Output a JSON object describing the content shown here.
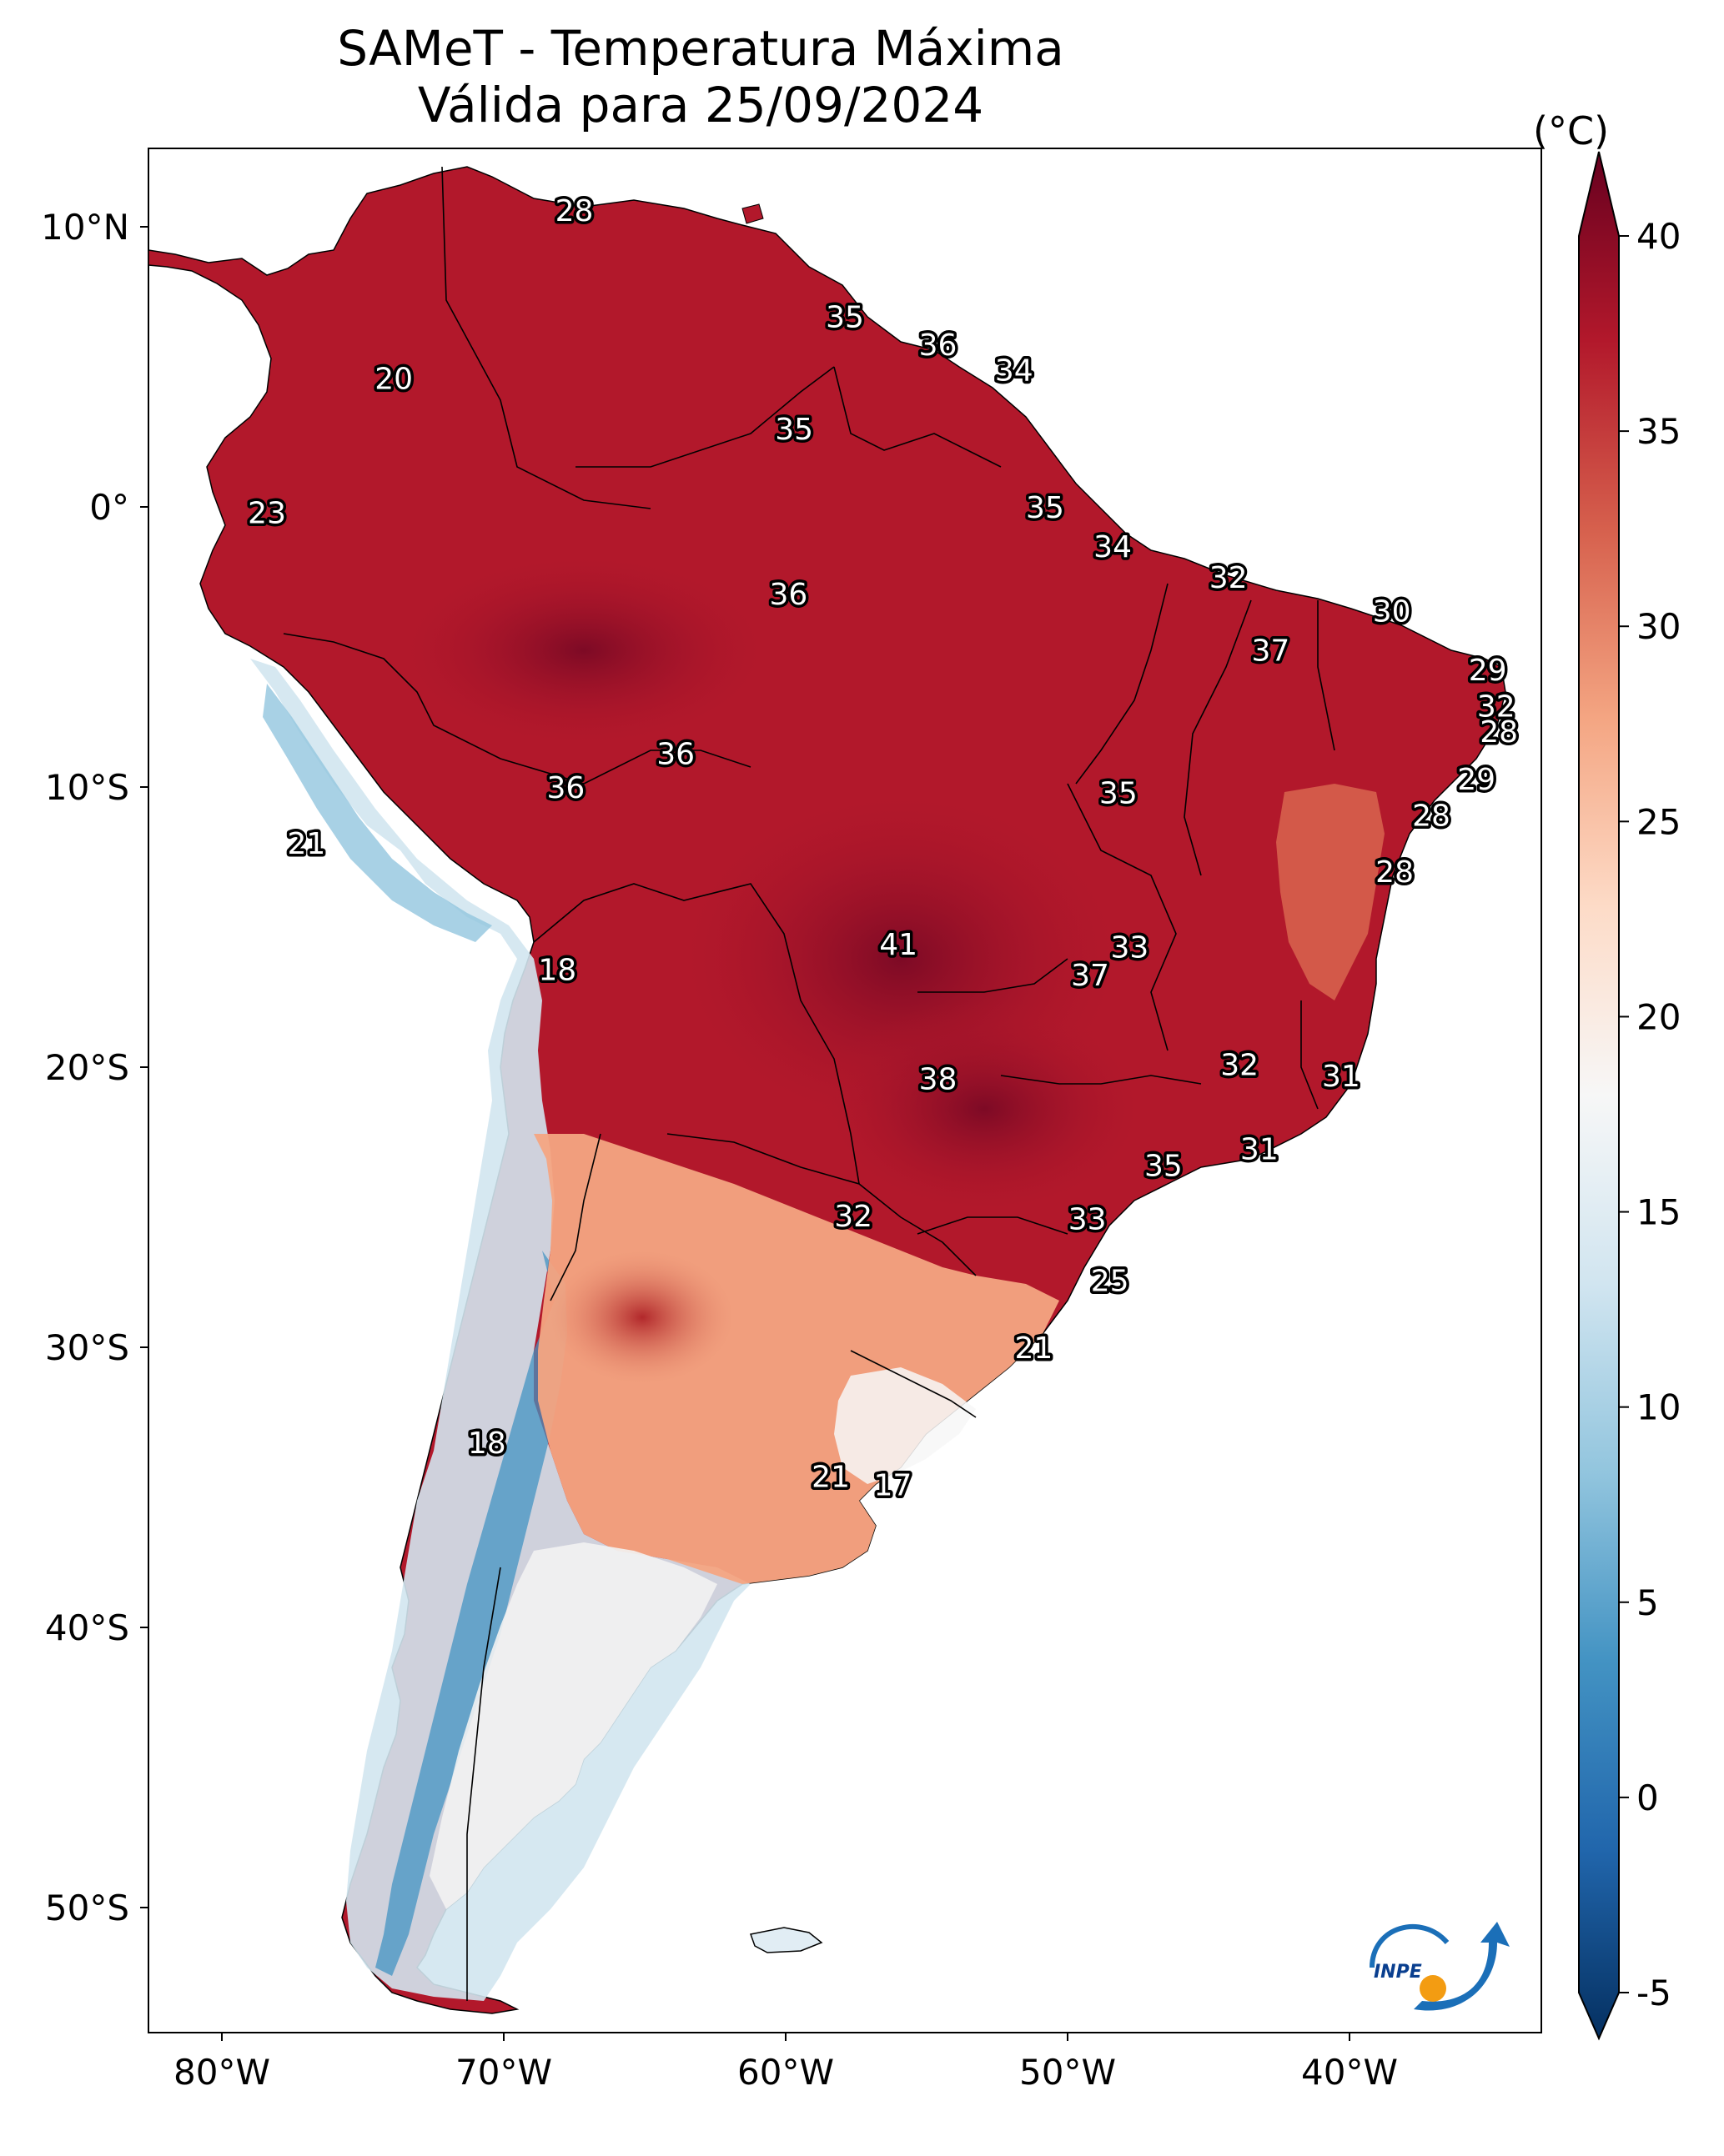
{
  "title": {
    "line1": "SAMeT - Temperatura Máxima",
    "line2": "Válida para 25/09/2024"
  },
  "axes": {
    "lon_labels": [
      "80°W",
      "70°W",
      "60°W",
      "50°W",
      "40°W"
    ],
    "lat_labels": [
      "10°N",
      "0°",
      "10°S",
      "20°S",
      "30°S",
      "40°S",
      "50°S"
    ]
  },
  "colorbar": {
    "unit": "(°C)",
    "ticks": [
      "40",
      "35",
      "30",
      "25",
      "20",
      "15",
      "10",
      "5",
      "0",
      "-5"
    ],
    "colors": [
      "#053061",
      "#2166ac",
      "#4393c3",
      "#92c5de",
      "#d1e5f0",
      "#f7f7f7",
      "#fddbc7",
      "#f4a582",
      "#d6604d",
      "#b2182b",
      "#67001f"
    ]
  },
  "stations": [
    {
      "value": "28",
      "lon": -67.5,
      "lat": 10.6
    },
    {
      "value": "20",
      "lon": -73.9,
      "lat": 4.6
    },
    {
      "value": "35",
      "lon": -57.9,
      "lat": 6.8
    },
    {
      "value": "36",
      "lon": -54.6,
      "lat": 5.8
    },
    {
      "value": "34",
      "lon": -51.9,
      "lat": 4.9
    },
    {
      "value": "35",
      "lon": -59.7,
      "lat": 2.8
    },
    {
      "value": "23",
      "lon": -78.4,
      "lat": -0.2
    },
    {
      "value": "35",
      "lon": -50.8,
      "lat": 0.0
    },
    {
      "value": "34",
      "lon": -48.4,
      "lat": -1.4
    },
    {
      "value": "32",
      "lon": -44.3,
      "lat": -2.5
    },
    {
      "value": "30",
      "lon": -38.5,
      "lat": -3.7
    },
    {
      "value": "36",
      "lon": -59.9,
      "lat": -3.1
    },
    {
      "value": "37",
      "lon": -42.8,
      "lat": -5.1
    },
    {
      "value": "29",
      "lon": -35.1,
      "lat": -5.8
    },
    {
      "value": "32",
      "lon": -34.8,
      "lat": -7.1
    },
    {
      "value": "28",
      "lon": -34.7,
      "lat": -8.0
    },
    {
      "value": "36",
      "lon": -63.9,
      "lat": -8.8
    },
    {
      "value": "36",
      "lon": -67.8,
      "lat": -10.0
    },
    {
      "value": "35",
      "lon": -48.2,
      "lat": -10.2
    },
    {
      "value": "29",
      "lon": -35.5,
      "lat": -9.7
    },
    {
      "value": "28",
      "lon": -37.1,
      "lat": -11.0
    },
    {
      "value": "21",
      "lon": -77.0,
      "lat": -12.0
    },
    {
      "value": "28",
      "lon": -38.4,
      "lat": -13.0
    },
    {
      "value": "41",
      "lon": -56.0,
      "lat": -15.6
    },
    {
      "value": "33",
      "lon": -47.8,
      "lat": -15.7
    },
    {
      "value": "37",
      "lon": -49.2,
      "lat": -16.7
    },
    {
      "value": "18",
      "lon": -68.1,
      "lat": -16.5
    },
    {
      "value": "32",
      "lon": -43.9,
      "lat": -19.9
    },
    {
      "value": "31",
      "lon": -40.3,
      "lat": -20.3
    },
    {
      "value": "38",
      "lon": -54.6,
      "lat": -20.4
    },
    {
      "value": "31",
      "lon": -43.2,
      "lat": -22.9
    },
    {
      "value": "35",
      "lon": -46.6,
      "lat": -23.5
    },
    {
      "value": "32",
      "lon": -57.6,
      "lat": -25.3
    },
    {
      "value": "33",
      "lon": -49.3,
      "lat": -25.4
    },
    {
      "value": "25",
      "lon": -48.5,
      "lat": -27.6
    },
    {
      "value": "21",
      "lon": -51.2,
      "lat": -30.0
    },
    {
      "value": "18",
      "lon": -70.6,
      "lat": -33.4
    },
    {
      "value": "21",
      "lon": -58.4,
      "lat": -34.6
    },
    {
      "value": "17",
      "lon": -56.2,
      "lat": -34.9
    }
  ],
  "logo": {
    "text": "INPE"
  }
}
